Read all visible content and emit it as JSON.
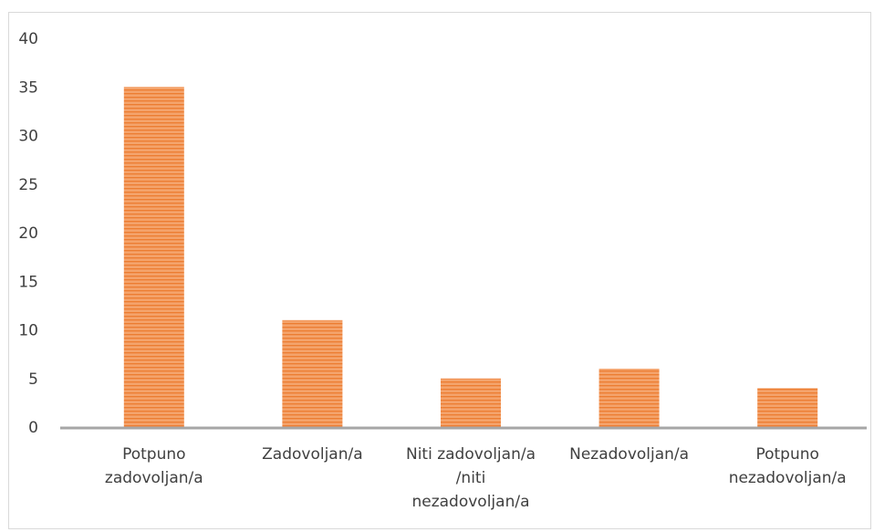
{
  "chart_data": {
    "type": "bar",
    "title": "",
    "xlabel": "",
    "ylabel": "",
    "categories": [
      [
        "Potpuno",
        "zadovoljan/a"
      ],
      [
        "Zadovoljan/a"
      ],
      [
        "Niti zadovoljan/a",
        "/niti",
        "nezadovoljan/a"
      ],
      [
        "Nezadovoljan/a"
      ],
      [
        "Potpuno",
        "nezadovoljan/a"
      ]
    ],
    "values": [
      35,
      11,
      5,
      6,
      4
    ],
    "ylim": [
      0,
      40
    ],
    "yticks": [
      0,
      5,
      10,
      15,
      20,
      25,
      30,
      35,
      40
    ],
    "grid": false,
    "legend": "none",
    "colors": {
      "bar": "#f4a36b",
      "bar_stripe": "#ec7c30",
      "axis": "#a6a6a6",
      "text": "#404040",
      "border": "#d9d9d9"
    }
  }
}
